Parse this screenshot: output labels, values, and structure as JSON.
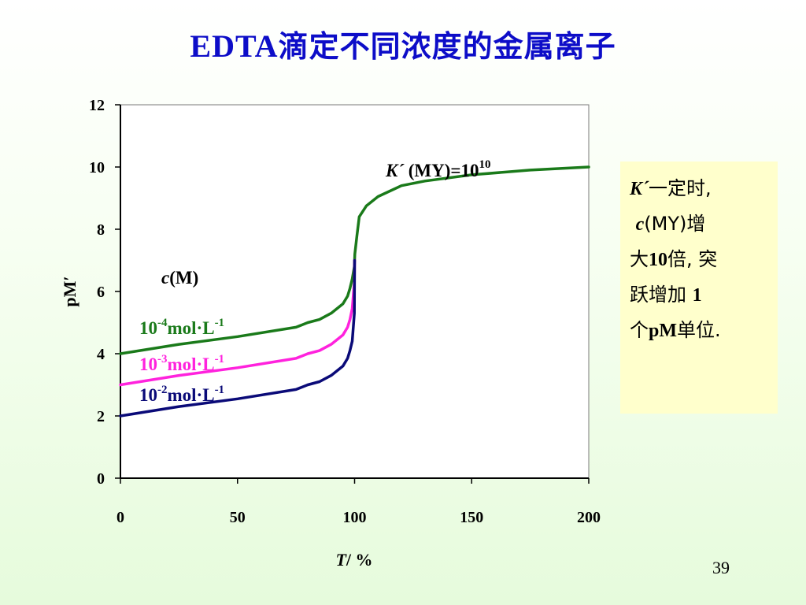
{
  "slide": {
    "title_prefix": "EDTA",
    "title_rest": "滴定不同浓度的金属离子",
    "page_number": "39"
  },
  "note": {
    "line1_var": "K´",
    "line1_rest": "一定时,",
    "line2_var": "c",
    "line2_rest": "(MY)增",
    "line3_a": "大",
    "line3_b": "10",
    "line3_c": "倍",
    "line3_d": ", 突",
    "line4_a": "跃增加 ",
    "line4_b": "1",
    "line5_a": "个",
    "line5_b": "pM",
    "line5_c": "单位."
  },
  "annotations": {
    "k_var": "K´",
    "k_rest": " (MY)=10",
    "k_exp": "10",
    "cm_var": "c",
    "cm_rest": "(M)"
  },
  "colors": {
    "title": "#0d0dc8",
    "green": "#1a7a1a",
    "magenta": "#ff22dd",
    "navy": "#0a0a78",
    "note_bg": "#ffffcc"
  },
  "chart_data": {
    "type": "line",
    "xlabel_var": "T",
    "xlabel_rest": "/ %",
    "ylabel": "pM′",
    "xlim": [
      0,
      200
    ],
    "ylim": [
      0,
      12
    ],
    "x_ticks": [
      "0",
      "50",
      "100",
      "150",
      "200"
    ],
    "y_ticks": [
      "0",
      "2",
      "4",
      "6",
      "8",
      "10",
      "12"
    ],
    "series": [
      {
        "label_base": "10",
        "label_exp": "-4",
        "label_unit": "mol·L",
        "label_unit_exp": "-1",
        "color": "#1a7a1a",
        "x": [
          0,
          25,
          50,
          75,
          80,
          85,
          90,
          95,
          97,
          98,
          99,
          99.9,
          100,
          100.1,
          101,
          102,
          105,
          110,
          120,
          130,
          150,
          175,
          200
        ],
        "y": [
          4.0,
          4.3,
          4.55,
          4.85,
          5.0,
          5.1,
          5.3,
          5.6,
          5.85,
          6.1,
          6.4,
          6.8,
          7.0,
          7.2,
          7.8,
          8.4,
          8.75,
          9.05,
          9.4,
          9.55,
          9.75,
          9.9,
          10.0
        ]
      },
      {
        "label_base": "10",
        "label_exp": "-3",
        "label_unit": "mol·L",
        "label_unit_exp": "-1",
        "color": "#ff22dd",
        "x": [
          0,
          25,
          50,
          75,
          80,
          85,
          90,
          95,
          97,
          98,
          99,
          99.9,
          100
        ],
        "y": [
          3.0,
          3.3,
          3.55,
          3.85,
          4.0,
          4.1,
          4.3,
          4.6,
          4.85,
          5.1,
          5.45,
          6.3,
          7.0
        ]
      },
      {
        "label_base": "10",
        "label_exp": "-2",
        "label_unit": "mol·L",
        "label_unit_exp": "-1",
        "color": "#0a0a78",
        "x": [
          0,
          25,
          50,
          75,
          80,
          85,
          90,
          95,
          97,
          98,
          99,
          99.9,
          100
        ],
        "y": [
          2.0,
          2.3,
          2.55,
          2.85,
          3.0,
          3.1,
          3.3,
          3.6,
          3.85,
          4.1,
          4.4,
          5.3,
          7.0
        ]
      }
    ]
  }
}
